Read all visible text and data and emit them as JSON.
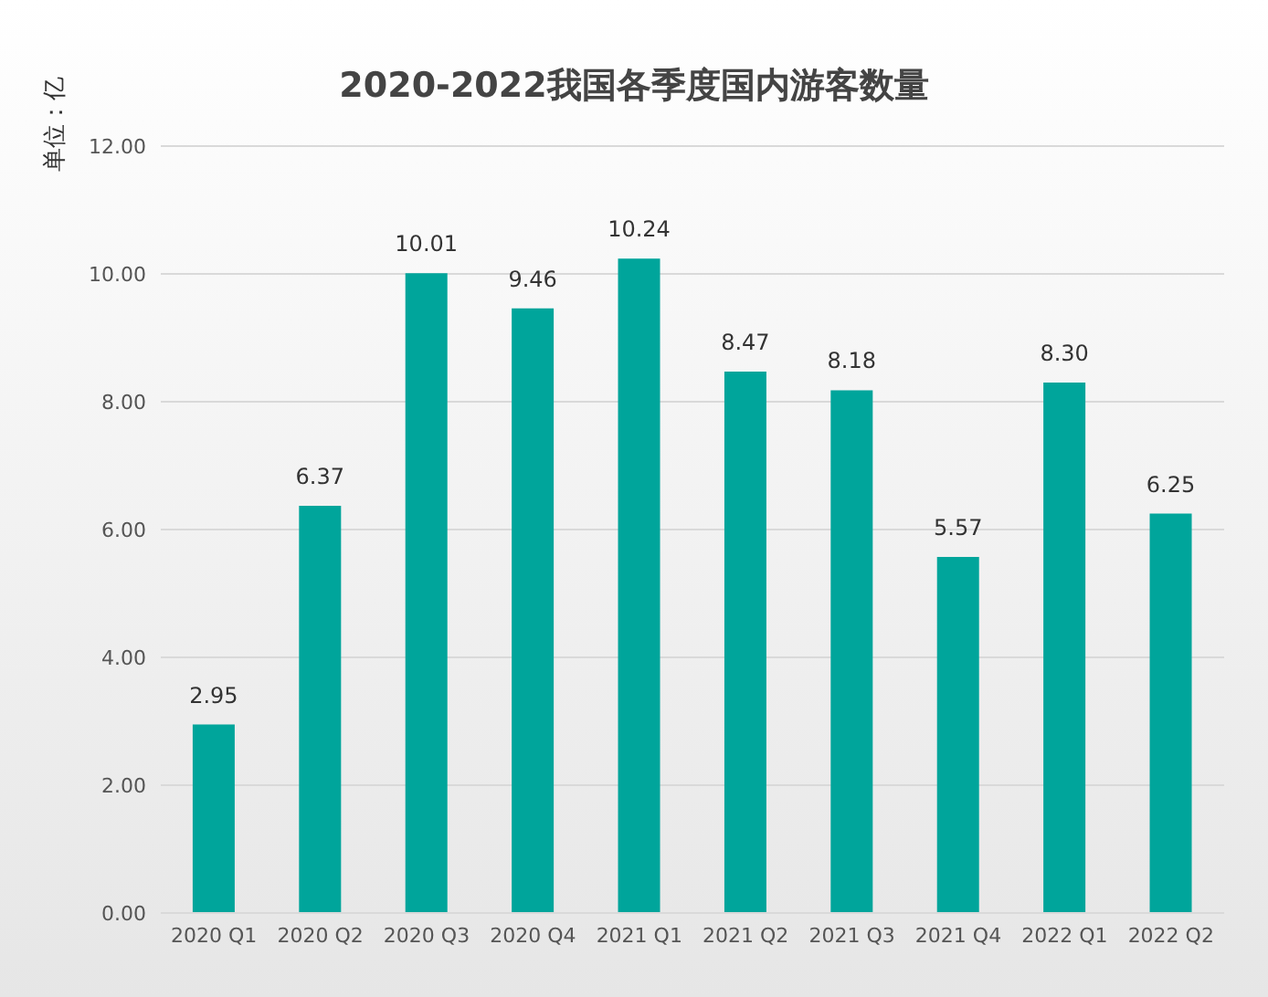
{
  "chart_data": {
    "type": "bar",
    "title": "2020-2022我国各季度国内游客数量",
    "ylabel": "单位：亿",
    "categories": [
      "2020 Q1",
      "2020 Q2",
      "2020 Q3",
      "2020 Q4",
      "2021 Q1",
      "2021 Q2",
      "2021 Q3",
      "2021 Q4",
      "2022 Q1",
      "2022 Q2"
    ],
    "values": [
      2.95,
      6.37,
      10.01,
      9.46,
      10.24,
      8.47,
      8.18,
      5.57,
      8.3,
      6.25
    ],
    "value_labels": [
      "2.95",
      "6.37",
      "10.01",
      "9.46",
      "10.24",
      "8.47",
      "8.18",
      "5.57",
      "8.30",
      "6.25"
    ],
    "color": "#00a59b",
    "ylim": [
      0,
      12
    ],
    "yticks": [
      {
        "value": 0,
        "label": "0.00"
      },
      {
        "value": 2,
        "label": "2.00"
      },
      {
        "value": 4,
        "label": "4.00"
      },
      {
        "value": 6,
        "label": "6.00"
      },
      {
        "value": 8,
        "label": "8.00"
      },
      {
        "value": 10,
        "label": "10.00"
      },
      {
        "value": 12,
        "label": "12.00"
      }
    ],
    "grid": "y"
  }
}
